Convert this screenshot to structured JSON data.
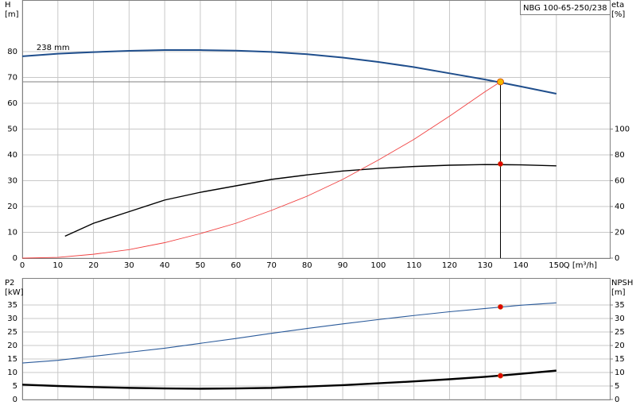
{
  "chart_data": [
    {
      "type": "line",
      "title": "NBG 100-65-250/238",
      "y_label": "H",
      "y_unit": "[m]",
      "y2_label": "eta",
      "y2_unit": "[%]",
      "x_label": "Q [m³/h]",
      "xlim": [
        0,
        165
      ],
      "xticks": [
        0,
        10,
        20,
        30,
        40,
        50,
        60,
        70,
        80,
        90,
        100,
        110,
        120,
        130,
        140,
        150
      ],
      "ylim": [
        0,
        100
      ],
      "yticks": [
        0,
        10,
        20,
        30,
        40,
        50,
        60,
        70,
        80
      ],
      "y2lim": [
        0,
        200
      ],
      "y2ticks": [
        0,
        20,
        40,
        60,
        80,
        100
      ],
      "grid": true,
      "duty_x": 134.3,
      "series": [
        {
          "name": "238 mm",
          "color": "#1f4e8c",
          "width": 2,
          "marker_color": "#f5b800",
          "x": [
            0,
            10,
            20,
            30,
            40,
            50,
            60,
            70,
            80,
            90,
            100,
            110,
            120,
            130,
            140,
            150
          ],
          "values": [
            78.2,
            79.2,
            79.8,
            80.3,
            80.6,
            80.6,
            80.4,
            79.9,
            79.0,
            77.7,
            76.0,
            74.0,
            71.6,
            69.2,
            66.5,
            63.7
          ],
          "duty": 68.3
        },
        {
          "color": "#000000",
          "width": 1.4,
          "axis": "y2",
          "marker_color": "#e00000",
          "x": [
            12,
            20,
            30,
            40,
            50,
            60,
            70,
            80,
            90,
            100,
            110,
            120,
            130,
            140,
            150
          ],
          "values": [
            17,
            27,
            36,
            45,
            51,
            56,
            61,
            64.5,
            67.5,
            69.5,
            71,
            72,
            72.5,
            72.3,
            71.5
          ],
          "duty": 73
        },
        {
          "color": "#f04040",
          "width": 0.9,
          "x": [
            0,
            10,
            20,
            30,
            40,
            50,
            60,
            70,
            80,
            90,
            100,
            110,
            120,
            130,
            134.3
          ],
          "values": [
            0,
            0.3,
            1.5,
            3.3,
            6,
            9.5,
            13.5,
            18.5,
            24,
            30.5,
            38,
            46,
            55,
            64.5,
            68.3
          ]
        }
      ]
    },
    {
      "type": "line",
      "y_label": "P2",
      "y_unit": "[kW]",
      "y2_label": "NPSH",
      "y2_unit": "[m]",
      "xlim": [
        0,
        165
      ],
      "ylim": [
        0,
        45
      ],
      "yticks": [
        0,
        5,
        10,
        15,
        20,
        25,
        30,
        35
      ],
      "y2lim": [
        0,
        45
      ],
      "y2ticks": [
        0,
        5,
        10,
        15,
        20,
        25,
        30,
        35
      ],
      "grid": true,
      "duty_x": 134.3,
      "series": [
        {
          "color": "#2a5a9a",
          "width": 1.1,
          "marker_color": "#e00000",
          "x": [
            0,
            10,
            20,
            30,
            40,
            50,
            60,
            70,
            80,
            90,
            100,
            110,
            120,
            130,
            140,
            150
          ],
          "values": [
            13.5,
            14.5,
            16,
            17.5,
            19,
            20.8,
            22.6,
            24.5,
            26.3,
            28,
            29.6,
            31.1,
            32.5,
            33.7,
            34.9,
            35.8
          ],
          "duty": 34.3
        },
        {
          "color": "#000000",
          "width": 2.4,
          "axis": "y2",
          "marker_color": "#e00000",
          "x": [
            0,
            10,
            20,
            30,
            40,
            50,
            60,
            70,
            80,
            90,
            100,
            110,
            120,
            130,
            140,
            150
          ],
          "values": [
            5.5,
            5,
            4.6,
            4.3,
            4.1,
            4.0,
            4.1,
            4.3,
            4.8,
            5.3,
            6,
            6.7,
            7.5,
            8.4,
            9.5,
            10.7
          ],
          "duty": 8.8
        }
      ]
    }
  ]
}
